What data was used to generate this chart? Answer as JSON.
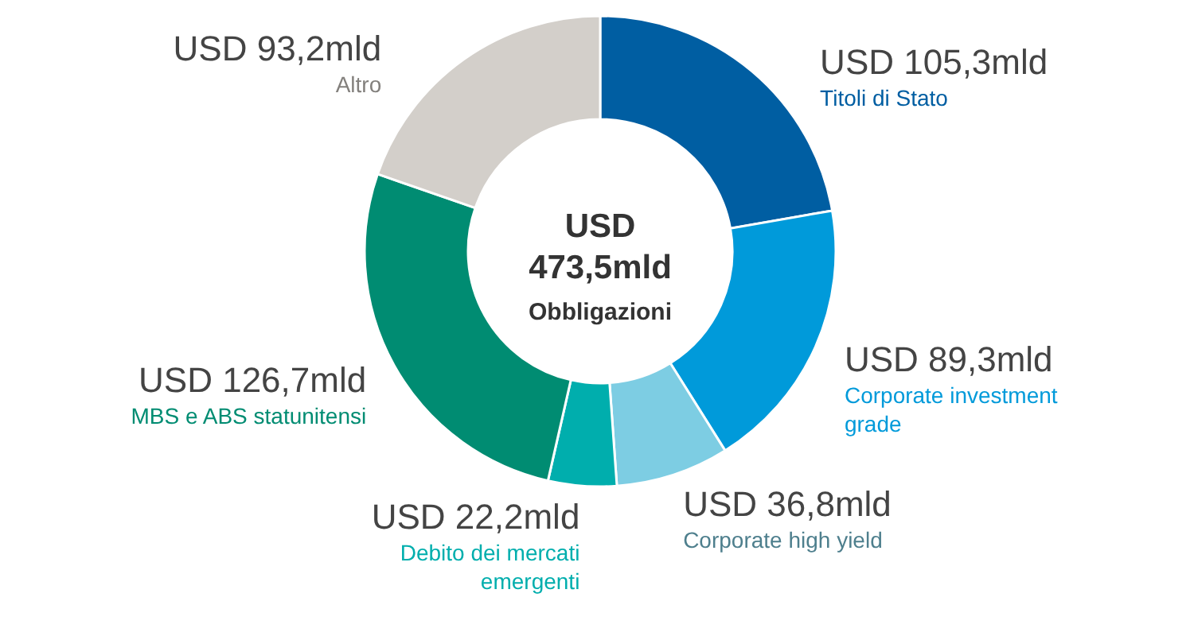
{
  "chart_data": {
    "type": "donut",
    "categories": [
      "Titoli di Stato",
      "Corporate investment grade",
      "Corporate high yield",
      "Debito dei mercati emergenti",
      "MBS e ABS statunitensi",
      "Altro"
    ],
    "values": [
      105.3,
      89.3,
      36.8,
      22.2,
      126.7,
      93.2
    ],
    "value_labels": [
      "USD 105,3mld",
      "USD 89,3mld",
      "USD 36,8mld",
      "USD 22,2mld",
      "USD 126,7mld",
      "USD 93,2mld"
    ],
    "colors": [
      "#005ea2",
      "#009ada",
      "#7dcde3",
      "#00aead",
      "#008c72",
      "#d3cfca"
    ],
    "annotations": [
      "USD 473,5mld",
      "Obbligazioni"
    ]
  }
}
